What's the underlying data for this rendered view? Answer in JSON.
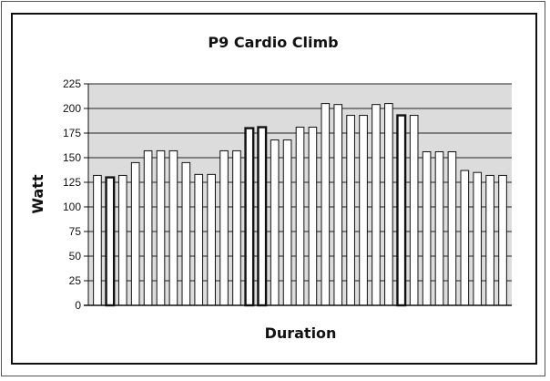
{
  "chart_data": {
    "type": "bar",
    "title": "P9 Cardio Climb",
    "xlabel": "Duration",
    "ylabel": "Watt",
    "ylim": [
      0,
      225
    ],
    "yticks": [
      0,
      25,
      50,
      75,
      100,
      125,
      150,
      175,
      200,
      225
    ],
    "grid": true,
    "legend": "none",
    "values": [
      132,
      130,
      132,
      145,
      157,
      157,
      157,
      145,
      133,
      133,
      157,
      157,
      180,
      181,
      168,
      168,
      181,
      181,
      205,
      204,
      193,
      193,
      204,
      205,
      193,
      193,
      156,
      156,
      156,
      137,
      135,
      132,
      132
    ],
    "dark_bar_indices": [
      1,
      12,
      13,
      24
    ],
    "colors": {
      "plot_background": "#dcdcdc",
      "bar_fill": "#ffffff",
      "bar_edge": "#111111",
      "grid": "#222222"
    }
  }
}
